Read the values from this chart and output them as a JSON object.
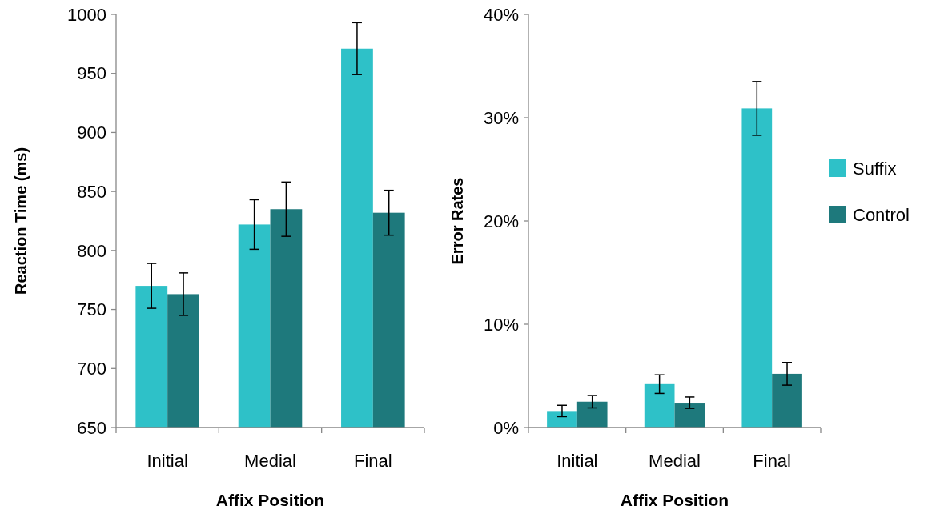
{
  "chart_data": [
    {
      "type": "bar",
      "xlabel": "Affix Position",
      "ylabel": "Reaction Time (ms)",
      "categories": [
        "Initial",
        "Medial",
        "Final"
      ],
      "series": [
        {
          "color": "#2ec1c8",
          "values": [
            770,
            822,
            971
          ],
          "errors": [
            19,
            21,
            22
          ]
        },
        {
          "color": "#1e797c",
          "values": [
            763,
            835,
            832
          ],
          "errors": [
            18,
            23,
            19
          ]
        }
      ],
      "ylim": [
        650,
        1000
      ],
      "yticks": [
        650,
        700,
        750,
        800,
        850,
        900,
        950,
        1000
      ],
      "grid": false,
      "legend": false
    },
    {
      "type": "bar",
      "xlabel": "Affix Position",
      "ylabel": "Error Rates",
      "categories": [
        "Initial",
        "Medial",
        "Final"
      ],
      "series": [
        {
          "name": "Suffix",
          "color": "#2ec1c8",
          "values": [
            1.6,
            4.2,
            30.9
          ],
          "errors": [
            0.55,
            0.9,
            2.6
          ]
        },
        {
          "name": "Control",
          "color": "#1e797c",
          "values": [
            2.5,
            2.4,
            5.2
          ],
          "errors": [
            0.6,
            0.55,
            1.1
          ]
        }
      ],
      "ylim": [
        0,
        40
      ],
      "yticks": [
        {
          "value": 0,
          "label": "0%"
        },
        {
          "value": 10,
          "label": "10%"
        },
        {
          "value": 20,
          "label": "20%"
        },
        {
          "value": 30,
          "label": "30%"
        },
        {
          "value": 40,
          "label": "40%"
        }
      ],
      "grid": false,
      "legend": "right"
    }
  ]
}
